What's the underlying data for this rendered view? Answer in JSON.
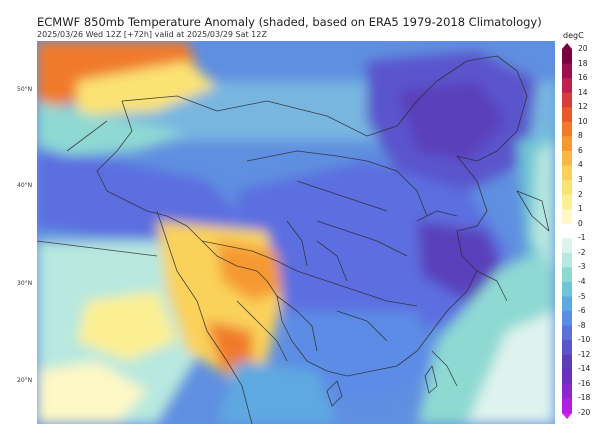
{
  "header": {
    "title": "ECMWF 850mb Temperature Anomaly (shaded, based on ERA5 1979-2018 Climatology)",
    "subtitle": "2025/03/26 Wed 12Z [+72h] valid at 2025/03/29 Sat 12Z"
  },
  "latitude_labels": [
    "50°N",
    "40°N",
    "30°N",
    "20°N"
  ],
  "colorbar": {
    "unit": "degC",
    "ticks": [
      "20",
      "18",
      "16",
      "14",
      "12",
      "10",
      "8",
      "6",
      "4",
      "3",
      "2",
      "1",
      "0",
      "-1",
      "-2",
      "-3",
      "-4",
      "-5",
      "-6",
      "-8",
      "-10",
      "-12",
      "-14",
      "-16",
      "-18",
      "-20"
    ],
    "colors": [
      "#7a0046",
      "#9e0f4e",
      "#c0204e",
      "#d93a3a",
      "#e8582c",
      "#f07a2a",
      "#f59a33",
      "#f8b845",
      "#fad15a",
      "#fbe373",
      "#fcef93",
      "#fdf8c6",
      "#ffffff",
      "#dff3ee",
      "#b8e8df",
      "#8fd9d3",
      "#6fc5d6",
      "#5ea9e2",
      "#5b8ce5",
      "#5b70dd",
      "#5a55cc",
      "#5a3fbb",
      "#6a30c0",
      "#8a28d0",
      "#b020e0",
      "#d01cf0"
    ]
  }
}
